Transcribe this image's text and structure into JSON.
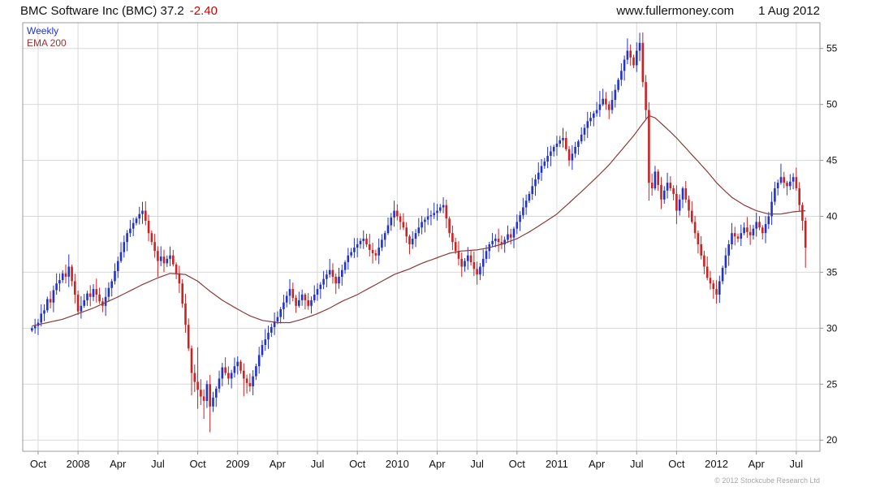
{
  "header": {
    "title_left": "BMC Software Inc (BMC) 37.2",
    "change": "-2.40",
    "site": "www.fullermoney.com",
    "date": "1 Aug 2012"
  },
  "legend": {
    "timeframe": "Weekly",
    "indicator": "EMA 200"
  },
  "footer": {
    "copyright": "© 2012 Stockcube Research Ltd"
  },
  "chart_data": {
    "type": "candlestick",
    "title": "BMC Software Inc (BMC)",
    "timeframe": "Weekly",
    "indicator": "EMA 200",
    "last_price": 37.2,
    "change": -2.4,
    "grid": true,
    "legend_position": "top-left",
    "ylim": [
      19.0,
      57.3
    ],
    "yticks": [
      20,
      25,
      30,
      35,
      40,
      45,
      50,
      55
    ],
    "x_axis": {
      "labels": [
        "Oct",
        "2008",
        "Apr",
        "Jul",
        "Oct",
        "2009",
        "Apr",
        "Jul",
        "Oct",
        "2010",
        "Apr",
        "Jul",
        "Oct",
        "2011",
        "Apr",
        "Jul",
        "Oct",
        "2012",
        "Apr",
        "Jul"
      ],
      "indices": [
        2,
        15,
        28,
        41,
        54,
        67,
        80,
        93,
        106,
        119,
        132,
        145,
        158,
        171,
        184,
        197,
        210,
        223,
        236,
        249
      ]
    },
    "closes": [
      30.0,
      30.2,
      30.5,
      31.3,
      31.6,
      32.6,
      32.3,
      33.4,
      34.0,
      34.3,
      34.9,
      34.6,
      35.5,
      34.2,
      33.0,
      31.5,
      32.0,
      32.5,
      33.1,
      32.8,
      33.5,
      33.0,
      32.4,
      32.0,
      32.8,
      33.6,
      34.2,
      35.1,
      36.0,
      36.8,
      37.7,
      38.5,
      38.9,
      39.4,
      39.8,
      40.2,
      40.5,
      39.6,
      38.5,
      37.7,
      36.9,
      36.0,
      36.4,
      35.8,
      36.2,
      36.5,
      35.7,
      34.9,
      34.0,
      32.2,
      30.3,
      28.2,
      26.0,
      25.2,
      24.5,
      23.9,
      23.5,
      25.0,
      23.0,
      23.8,
      24.6,
      25.5,
      26.5,
      26.0,
      25.5,
      26.0,
      26.6,
      27.0,
      26.2,
      25.5,
      25.1,
      24.8,
      25.7,
      26.6,
      27.6,
      28.5,
      29.0,
      29.6,
      30.1,
      30.6,
      31.0,
      31.7,
      32.3,
      32.9,
      33.5,
      32.7,
      32.0,
      32.5,
      33.0,
      32.5,
      32.0,
      32.5,
      33.0,
      33.5,
      33.9,
      34.4,
      34.8,
      35.2,
      34.6,
      34.0,
      34.6,
      35.2,
      35.9,
      36.5,
      36.8,
      37.2,
      37.5,
      37.8,
      38.0,
      37.5,
      37.0,
      36.7,
      36.5,
      37.2,
      37.9,
      38.5,
      39.2,
      39.9,
      40.5,
      40.0,
      39.5,
      39.0,
      38.2,
      37.5,
      38.0,
      38.5,
      39.0,
      39.5,
      39.7,
      40.0,
      40.1,
      40.3,
      40.5,
      40.8,
      41.0,
      39.8,
      38.5,
      37.7,
      36.9,
      36.2,
      35.5,
      36.0,
      36.5,
      35.9,
      35.3,
      34.8,
      35.5,
      36.2,
      36.9,
      37.5,
      37.8,
      38.0,
      37.7,
      37.5,
      37.9,
      38.4,
      38.1,
      38.9,
      39.5,
      40.1,
      40.8,
      41.4,
      42.0,
      42.7,
      43.3,
      43.9,
      44.5,
      44.9,
      45.4,
      45.8,
      46.2,
      46.5,
      46.8,
      47.0,
      46.0,
      45.0,
      45.6,
      46.2,
      46.7,
      47.3,
      47.9,
      48.5,
      48.8,
      49.2,
      49.5,
      50.0,
      50.5,
      50.0,
      49.5,
      50.4,
      51.3,
      52.2,
      53.0,
      54.0,
      54.8,
      54.2,
      53.5,
      54.8,
      55.5,
      52.0,
      49.5,
      43.0,
      42.5,
      44.0,
      42.8,
      41.5,
      42.3,
      43.0,
      42.5,
      42.0,
      40.5,
      41.5,
      42.5,
      41.5,
      40.5,
      39.5,
      38.5,
      37.5,
      36.5,
      35.5,
      34.5,
      34.0,
      33.5,
      33.0,
      34.2,
      35.4,
      36.5,
      37.5,
      38.5,
      38.2,
      38.0,
      38.5,
      39.0,
      38.6,
      38.3,
      38.9,
      39.5,
      39.0,
      38.5,
      39.3,
      40.0,
      41.3,
      42.5,
      43.0,
      43.5,
      43.0,
      42.7,
      43.1,
      43.5,
      42.5,
      41.0,
      39.6,
      37.2
    ],
    "wick_overrides": {
      "12": {
        "h": 36.6
      },
      "36": {
        "h": 41.3
      },
      "41": {
        "l": 34.6
      },
      "52": {
        "l": 24.0
      },
      "54": {
        "h": 28.3,
        "l": 22.8
      },
      "56": {
        "l": 21.9
      },
      "58": {
        "l": 20.7
      },
      "69": {
        "l": 23.9
      },
      "97": {
        "h": 36.2
      },
      "118": {
        "h": 41.4
      },
      "134": {
        "h": 41.7
      },
      "145": {
        "l": 33.9
      },
      "173": {
        "h": 47.9
      },
      "185": {
        "h": 51.2
      },
      "194": {
        "h": 55.9
      },
      "198": {
        "h": 56.4
      },
      "201": {
        "h": 50.2,
        "l": 41.4
      },
      "210": {
        "l": 39.3
      },
      "223": {
        "l": 32.2
      },
      "228": {
        "h": 39.4
      },
      "244": {
        "h": 44.7
      },
      "252": {
        "h": 39.9,
        "l": 35.4
      }
    },
    "ema_anchors": [
      [
        0,
        30.2
      ],
      [
        10,
        30.8
      ],
      [
        20,
        31.8
      ],
      [
        28,
        32.8
      ],
      [
        36,
        33.9
      ],
      [
        41,
        34.5
      ],
      [
        45,
        34.9
      ],
      [
        50,
        34.8
      ],
      [
        54,
        34.2
      ],
      [
        58,
        33.3
      ],
      [
        62,
        32.5
      ],
      [
        67,
        31.7
      ],
      [
        71,
        31.1
      ],
      [
        75,
        30.7
      ],
      [
        80,
        30.5
      ],
      [
        84,
        30.5
      ],
      [
        88,
        30.8
      ],
      [
        93,
        31.3
      ],
      [
        97,
        31.8
      ],
      [
        101,
        32.4
      ],
      [
        106,
        33.0
      ],
      [
        110,
        33.6
      ],
      [
        114,
        34.2
      ],
      [
        118,
        34.8
      ],
      [
        123,
        35.3
      ],
      [
        127,
        35.8
      ],
      [
        132,
        36.3
      ],
      [
        136,
        36.7
      ],
      [
        140,
        36.9
      ],
      [
        145,
        37.0
      ],
      [
        149,
        37.2
      ],
      [
        153,
        37.5
      ],
      [
        158,
        38.0
      ],
      [
        162,
        38.6
      ],
      [
        166,
        39.3
      ],
      [
        171,
        40.2
      ],
      [
        175,
        41.2
      ],
      [
        179,
        42.2
      ],
      [
        184,
        43.5
      ],
      [
        188,
        44.6
      ],
      [
        192,
        45.9
      ],
      [
        196,
        47.2
      ],
      [
        199,
        48.3
      ],
      [
        201,
        49.0
      ],
      [
        203,
        48.8
      ],
      [
        205,
        48.3
      ],
      [
        207,
        47.8
      ],
      [
        210,
        47.0
      ],
      [
        212,
        46.4
      ],
      [
        216,
        45.2
      ],
      [
        220,
        44.0
      ],
      [
        223,
        43.0
      ],
      [
        226,
        42.2
      ],
      [
        228,
        41.7
      ],
      [
        232,
        41.0
      ],
      [
        236,
        40.5
      ],
      [
        240,
        40.2
      ],
      [
        244,
        40.2
      ],
      [
        248,
        40.4
      ],
      [
        252,
        40.5
      ]
    ],
    "colors": {
      "up": "#2233cc",
      "down": "#cc2222",
      "ema": "#8b3a3a",
      "grid": "#d8d8d8",
      "frame": "#999999",
      "text": "#111111",
      "change": "#cc0000"
    }
  }
}
